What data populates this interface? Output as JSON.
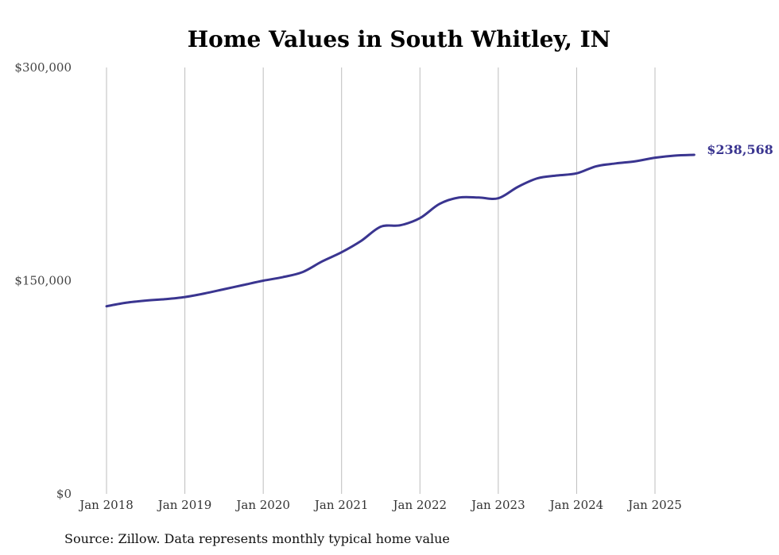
{
  "chart_data": {
    "type": "line",
    "title": "Home Values in South Whitley, IN",
    "source_note": "Source: Zillow. Data represents monthly typical home value",
    "xlabel": "",
    "ylabel": "",
    "ylim": [
      0,
      300000
    ],
    "y_ticks": [
      {
        "value": 0,
        "label": "$0"
      },
      {
        "value": 150000,
        "label": "$150,000"
      },
      {
        "value": 300000,
        "label": "$300,000"
      }
    ],
    "x_ticks": [
      {
        "value": "2018-01",
        "label": "Jan 2018"
      },
      {
        "value": "2019-01",
        "label": "Jan 2019"
      },
      {
        "value": "2020-01",
        "label": "Jan 2020"
      },
      {
        "value": "2021-01",
        "label": "Jan 2021"
      },
      {
        "value": "2022-01",
        "label": "Jan 2022"
      },
      {
        "value": "2023-01",
        "label": "Jan 2023"
      },
      {
        "value": "2024-01",
        "label": "Jan 2024"
      },
      {
        "value": "2025-01",
        "label": "Jan 2025"
      }
    ],
    "grid": {
      "vertical": true,
      "horizontal": false
    },
    "line_color": "#3a3590",
    "end_label": "$238,568",
    "series": [
      {
        "x": [
          "2018-01",
          "2018-04",
          "2018-07",
          "2018-10",
          "2019-01",
          "2019-04",
          "2019-07",
          "2019-10",
          "2020-01",
          "2020-04",
          "2020-07",
          "2020-10",
          "2021-01",
          "2021-04",
          "2021-07",
          "2021-10",
          "2022-01",
          "2022-04",
          "2022-07",
          "2022-10",
          "2023-01",
          "2023-04",
          "2023-07",
          "2023-10",
          "2024-01",
          "2024-04",
          "2024-07",
          "2024-10",
          "2025-01",
          "2025-04",
          "2025-07"
        ],
        "y": [
          132000,
          134500,
          136000,
          137000,
          138500,
          141000,
          144000,
          147000,
          150000,
          152500,
          156000,
          163500,
          170000,
          178000,
          188000,
          189000,
          194000,
          204000,
          208500,
          208500,
          208000,
          216000,
          222000,
          224000,
          225500,
          230500,
          232500,
          234000,
          236500,
          238000,
          238568
        ]
      }
    ]
  }
}
